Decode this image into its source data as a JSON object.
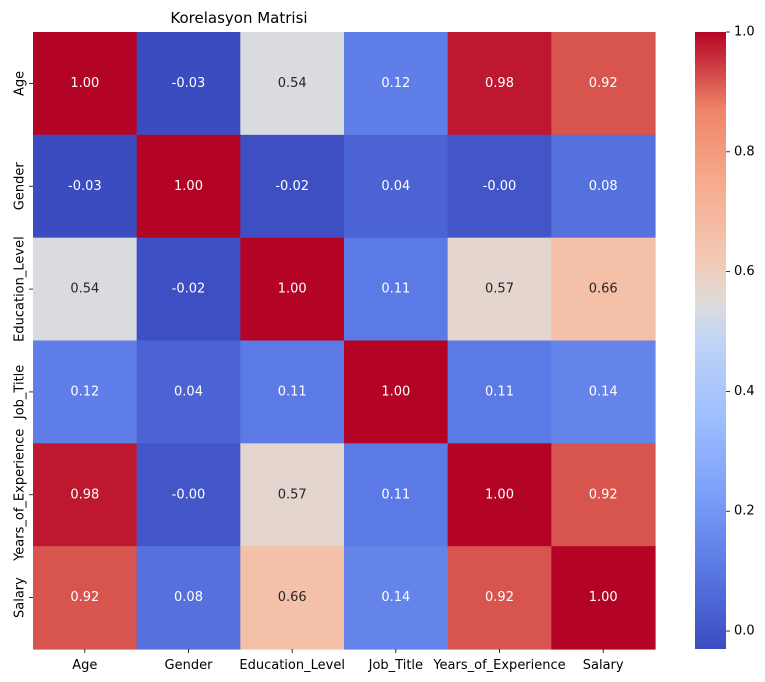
{
  "chart_data": {
    "type": "heatmap",
    "title": "Korelasyon Matrisi",
    "xlabel": "",
    "ylabel": "",
    "categories": [
      "Age",
      "Gender",
      "Education_Level",
      "Job_Title",
      "Years_of_Experience",
      "Salary"
    ],
    "values": [
      [
        1.0,
        -0.03,
        0.54,
        0.12,
        0.98,
        0.92
      ],
      [
        -0.03,
        1.0,
        -0.02,
        0.04,
        -0.0,
        0.08
      ],
      [
        0.54,
        -0.02,
        1.0,
        0.11,
        0.57,
        0.66
      ],
      [
        0.12,
        0.04,
        0.11,
        1.0,
        0.11,
        0.14
      ],
      [
        0.98,
        -0.0,
        0.57,
        0.11,
        1.0,
        0.92
      ],
      [
        0.92,
        0.08,
        0.66,
        0.14,
        0.92,
        1.0
      ]
    ],
    "value_labels": [
      [
        "1.00",
        "-0.03",
        "0.54",
        "0.12",
        "0.98",
        "0.92"
      ],
      [
        "-0.03",
        "1.00",
        "-0.02",
        "0.04",
        "-0.00",
        "0.08"
      ],
      [
        "0.54",
        "-0.02",
        "1.00",
        "0.11",
        "0.57",
        "0.66"
      ],
      [
        "0.12",
        "0.04",
        "0.11",
        "1.00",
        "0.11",
        "0.14"
      ],
      [
        "0.98",
        "-0.00",
        "0.57",
        "0.11",
        "1.00",
        "0.92"
      ],
      [
        "0.92",
        "0.08",
        "0.66",
        "0.14",
        "0.92",
        "1.00"
      ]
    ],
    "colormap": "coolwarm",
    "vmin": -0.03,
    "vmax": 1.0,
    "colorbar_ticks": [
      0.0,
      0.2,
      0.4,
      0.6,
      0.8,
      1.0
    ],
    "colorbar_tick_labels": [
      "0.0",
      "0.2",
      "0.4",
      "0.6",
      "0.8",
      "1.0"
    ],
    "grid": false,
    "legend": "colorbar-right"
  }
}
